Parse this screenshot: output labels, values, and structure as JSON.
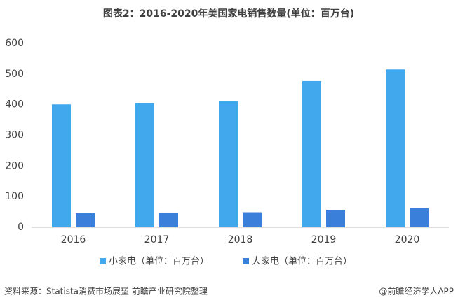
{
  "chart_data": {
    "type": "bar",
    "title": "图表2：2016-2020年美国家电销售数量(单位：百万台)",
    "categories": [
      "2016",
      "2017",
      "2018",
      "2019",
      "2020"
    ],
    "series": [
      {
        "name": "小家电（单位：百万台）",
        "color": "#41a8ee",
        "values": [
          401,
          405,
          412,
          477,
          515
        ]
      },
      {
        "name": "大家电（单位：百万台）",
        "color": "#3a7fd9",
        "values": [
          46,
          48,
          49,
          57,
          62
        ]
      }
    ],
    "ylim": [
      0,
      600
    ],
    "yticks": [
      0,
      100,
      200,
      300,
      400,
      500,
      600
    ],
    "grid": false,
    "source": "资料来源：Statista消费市场展望 前瞻产业研究院整理",
    "credit": "@前瞻经济学人APP"
  }
}
